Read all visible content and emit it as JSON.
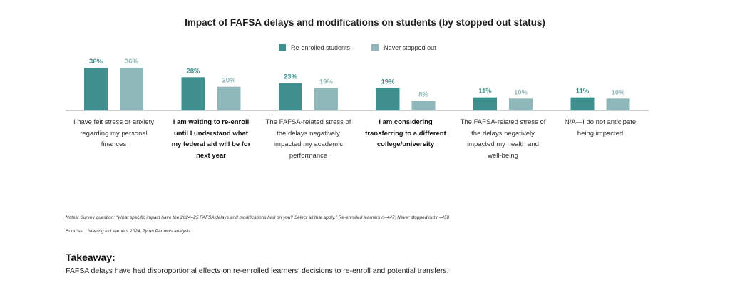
{
  "chart_data": {
    "type": "bar",
    "title": "Impact of FAFSA delays and modifications on students (by stopped out status)",
    "categories": [
      "I have felt stress or anxiety regarding my personal finances",
      "I am waiting to re-enroll until I understand what my federal aid will be for next year",
      "The FAFSA-related stress of the delays negatively impacted my academic performance",
      "I am considering transferring to a different college/university",
      "The FAFSA-related stress of the delays negatively impacted my health and well-being",
      "N/A—I do not anticipate being impacted"
    ],
    "category_bold": [
      false,
      true,
      false,
      true,
      false,
      false
    ],
    "series": [
      {
        "name": "Re-enrolled students",
        "values": [
          36,
          28,
          23,
          19,
          11,
          11
        ],
        "color": "#3f8f8e"
      },
      {
        "name": "Never stopped out",
        "values": [
          36,
          20,
          19,
          8,
          10,
          10
        ],
        "color": "#8fb6b8"
      }
    ],
    "data_labels": [
      [
        "36%",
        "28%",
        "23%",
        "19%",
        "11%",
        "11%"
      ],
      [
        "36%",
        "20%",
        "19%",
        "8%",
        "10%",
        "10%"
      ]
    ],
    "value_unit": "%",
    "ylim": [
      0,
      36
    ],
    "grid": false,
    "legend": "top-center"
  },
  "notes": {
    "survey": "Notes: Survey question: “What specific impact have the 2024–25 FAFSA delays and modifications had on you? Select all that apply.” Re-enrolled learners n=447; Never stopped out n=450",
    "sources": "Sources: Listening to Learners 2024, Tyton Partners analysis"
  },
  "takeaway": {
    "heading": "Takeaway:",
    "text": "FAFSA delays have had disproportional effects on re-enrolled learners’ decisions to re-enroll and potential transfers."
  }
}
